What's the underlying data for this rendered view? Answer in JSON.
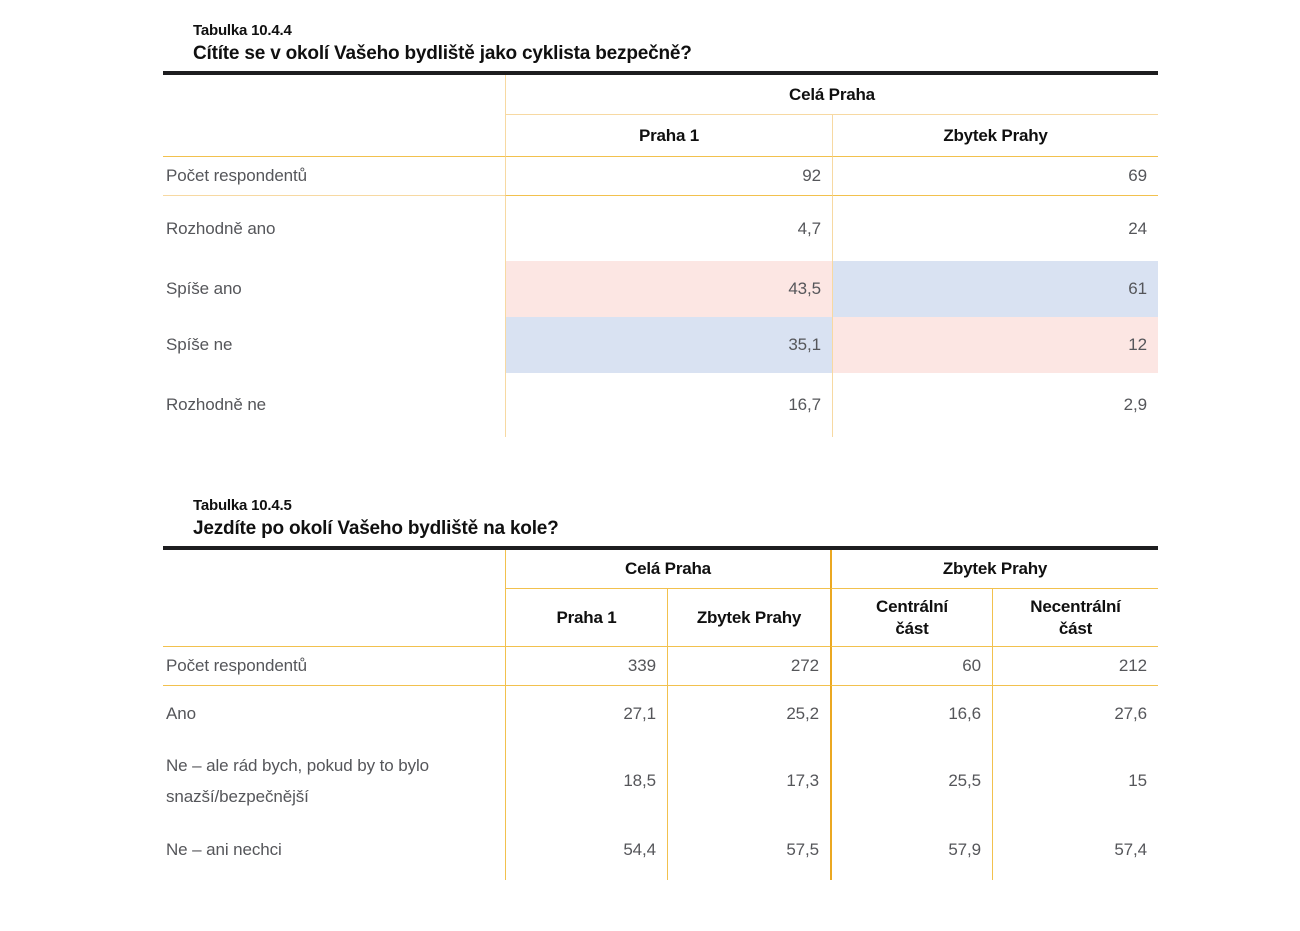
{
  "colors": {
    "text_black": "#101010",
    "text_gray": "#55565a",
    "top_rule": "#1d1d1f",
    "line_pale": "#f7d9a2",
    "line_gold": "#f2c14e",
    "line_amber": "#eba821",
    "cell_pink": "#fce6e3",
    "cell_blue": "#d9e2f2"
  },
  "table1": {
    "tag": "Tabulka 10.4.4",
    "question": "Cítíte se v okolí Vašeho bydliště jako cyklista bezpečně?",
    "group_header": "Celá Praha",
    "col_headers": [
      "Praha 1",
      "Zbytek Prahy"
    ],
    "rows": [
      {
        "label": "Počet respondentů",
        "values": [
          "92",
          "69"
        ],
        "highlights": [
          "none",
          "none"
        ]
      },
      {
        "label": "Rozhodně ano",
        "values": [
          "4,7",
          "24"
        ],
        "highlights": [
          "none",
          "none"
        ]
      },
      {
        "label": "Spíše ano",
        "values": [
          "43,5",
          "61"
        ],
        "highlights": [
          "pink",
          "blue"
        ]
      },
      {
        "label": "Spíše ne",
        "values": [
          "35,1",
          "12"
        ],
        "highlights": [
          "blue",
          "pink"
        ]
      },
      {
        "label": "Rozhodně ne",
        "values": [
          "16,7",
          "2,9"
        ],
        "highlights": [
          "none",
          "none"
        ]
      }
    ]
  },
  "table2": {
    "tag": "Tabulka 10.4.5",
    "question": "Jezdíte po okolí Vašeho bydliště na kole?",
    "group_headers": [
      "Celá Praha",
      "Zbytek Prahy"
    ],
    "col_headers": [
      "Praha 1",
      "Zbytek Prahy",
      "Centrální část",
      "Necentrální část"
    ],
    "rows": [
      {
        "label": "Počet respondentů",
        "values": [
          "339",
          "272",
          "60",
          "212"
        ]
      },
      {
        "label": "Ano",
        "values": [
          "27,1",
          "25,2",
          "16,6",
          "27,6"
        ]
      },
      {
        "label": "Ne – ale rád bych, pokud by to bylo snazší/bezpečnější",
        "values": [
          "18,5",
          "17,3",
          "25,5",
          "15"
        ]
      },
      {
        "label": "Ne – ani nechci",
        "values": [
          "54,4",
          "57,5",
          "57,9",
          "57,4"
        ]
      }
    ]
  }
}
